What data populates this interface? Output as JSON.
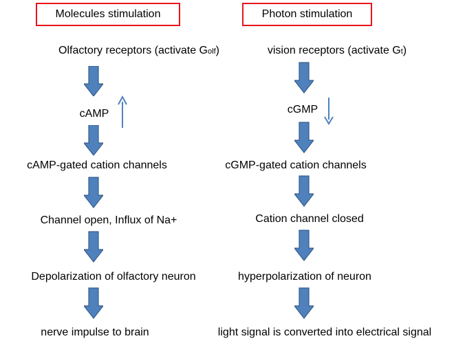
{
  "colors": {
    "box_border": "#e8131a",
    "arrow_fill": "#4f81bd",
    "arrow_stroke": "#385d8a",
    "small_arrow": "#4f81bd"
  },
  "left": {
    "header": "Molecules stimulation",
    "steps": [
      {
        "main": "Olfactory receptors (activate G",
        "sub": "olf",
        "tail": ")"
      },
      {
        "main": "cAMP"
      },
      {
        "main": "cAMP-gated cation channels"
      },
      {
        "main": "Channel open, Influx of Na+"
      },
      {
        "main": "Depolarization of olfactory neuron"
      },
      {
        "main": "nerve impulse to brain"
      }
    ],
    "indicator": "up-arrow-icon"
  },
  "right": {
    "header": "Photon stimulation",
    "steps": [
      {
        "main": "vision receptors (activate G",
        "sub": "t",
        "tail": ")"
      },
      {
        "main": "cGMP"
      },
      {
        "main": "cGMP-gated cation channels"
      },
      {
        "main": "Cation channel closed"
      },
      {
        "main": "hyperpolarization of neuron"
      },
      {
        "main": "light signal is converted into electrical signal"
      }
    ],
    "indicator": "down-arrow-icon"
  }
}
